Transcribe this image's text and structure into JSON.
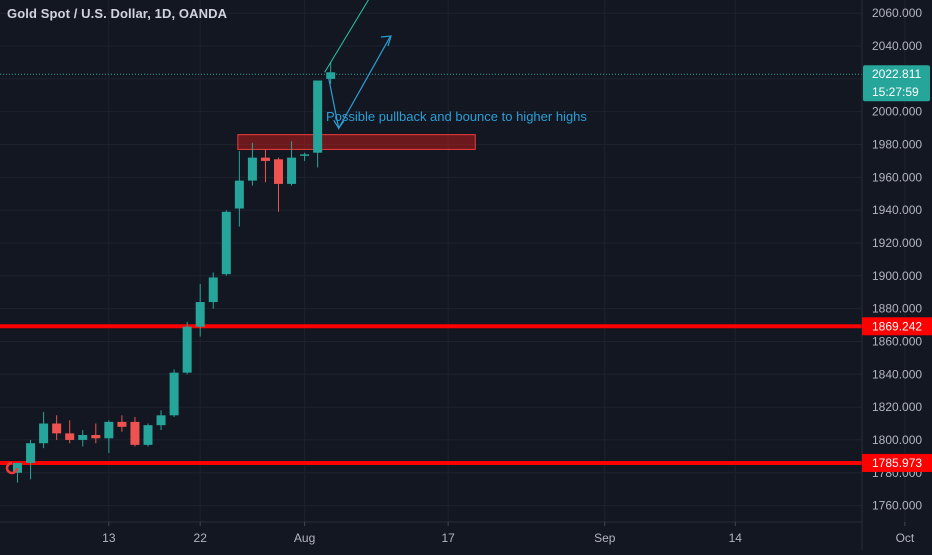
{
  "chart_data": {
    "type": "candlestick",
    "title": "Gold Spot / U.S. Dollar, 1D, OANDA",
    "ylim": [
      1750,
      2065
    ],
    "y_ticks": [
      1760,
      1780,
      1800,
      1820,
      1840,
      1860,
      1880,
      1900,
      1920,
      1940,
      1960,
      1980,
      2000,
      2020,
      2040,
      2060
    ],
    "y_tick_labels": [
      "1760.000",
      "1780.000",
      "1800.000",
      "1820.000",
      "1840.000",
      "1860.000",
      "1880.000",
      "1900.000",
      "1920.000",
      "1940.000",
      "1960.000",
      "1980.000",
      "2000.000",
      "2020.000",
      "2040.000",
      "2060.000"
    ],
    "x_ticks": [
      {
        "label": "13",
        "index": 7
      },
      {
        "label": "22",
        "index": 14
      },
      {
        "label": "Aug",
        "index": 22
      },
      {
        "label": "17",
        "index": 33
      },
      {
        "label": "Sep",
        "index": 45
      },
      {
        "label": "14",
        "index": 55
      },
      {
        "label": "Oct",
        "index": 68
      }
    ],
    "candles": [
      {
        "o": 1780,
        "h": 1786,
        "l": 1774,
        "c": 1786
      },
      {
        "o": 1786,
        "h": 1800,
        "l": 1776,
        "c": 1798
      },
      {
        "o": 1798,
        "h": 1817,
        "l": 1795,
        "c": 1810
      },
      {
        "o": 1810,
        "h": 1815,
        "l": 1800,
        "c": 1804
      },
      {
        "o": 1804,
        "h": 1812,
        "l": 1798,
        "c": 1800
      },
      {
        "o": 1800,
        "h": 1806,
        "l": 1796,
        "c": 1803
      },
      {
        "o": 1803,
        "h": 1810,
        "l": 1798,
        "c": 1801
      },
      {
        "o": 1801,
        "h": 1812,
        "l": 1792,
        "c": 1811
      },
      {
        "o": 1811,
        "h": 1815,
        "l": 1805,
        "c": 1808
      },
      {
        "o": 1811,
        "h": 1814,
        "l": 1796,
        "c": 1797
      },
      {
        "o": 1797,
        "h": 1810,
        "l": 1796,
        "c": 1809
      },
      {
        "o": 1809,
        "h": 1818,
        "l": 1806,
        "c": 1815
      },
      {
        "o": 1815,
        "h": 1843,
        "l": 1814,
        "c": 1841
      },
      {
        "o": 1841,
        "h": 1872,
        "l": 1840,
        "c": 1869
      },
      {
        "o": 1869,
        "h": 1895,
        "l": 1863,
        "c": 1884
      },
      {
        "o": 1884,
        "h": 1902,
        "l": 1880,
        "c": 1899
      },
      {
        "o": 1901,
        "h": 1940,
        "l": 1900,
        "c": 1939
      },
      {
        "o": 1941,
        "h": 1976,
        "l": 1930,
        "c": 1958
      },
      {
        "o": 1958,
        "h": 1981,
        "l": 1955,
        "c": 1972
      },
      {
        "o": 1972,
        "h": 1977,
        "l": 1957,
        "c": 1970
      },
      {
        "o": 1971,
        "h": 1972,
        "l": 1939,
        "c": 1956
      },
      {
        "o": 1956,
        "h": 1982,
        "l": 1955,
        "c": 1972
      },
      {
        "o": 1974,
        "h": 1975,
        "l": 1970,
        "c": 1974
      },
      {
        "o": 1975,
        "h": 2019,
        "l": 1966,
        "c": 2019
      },
      {
        "o": 2020,
        "h": 2030,
        "l": 2017,
        "c": 2024
      }
    ],
    "last_price": "2022.811",
    "countdown": "15:27:59",
    "levels": [
      {
        "price": 1869.242,
        "label": "1869.242",
        "color": "#ff0000"
      },
      {
        "price": 1785.973,
        "label": "1785.973",
        "color": "#ff0000"
      }
    ],
    "zone": {
      "from_index": 17,
      "to_index": 35,
      "top": 1986,
      "bottom": 1977,
      "color": "#b71c1c"
    },
    "annotation": {
      "text": "Possible pullback and bounce to higher highs",
      "color": "#2a9fd6"
    },
    "colors": {
      "up": "#26a69a",
      "down": "#ef5350",
      "background": "#131722",
      "grid": "#1e222d",
      "axis_text": "#b2b5be",
      "price_tag": "#26a69a"
    }
  }
}
